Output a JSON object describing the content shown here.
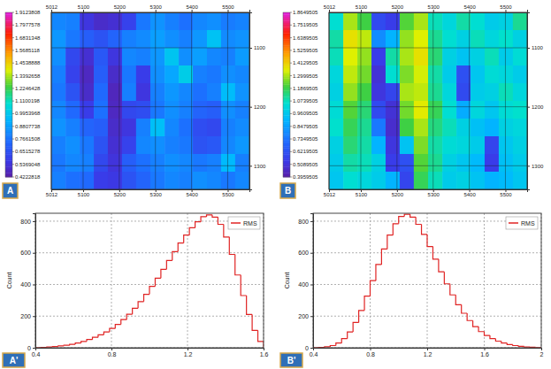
{
  "chart_data": [
    {
      "type": "heatmap",
      "panel_label": "A",
      "x": [
        5032,
        5071,
        5110,
        5149,
        5188,
        5227,
        5266,
        5306,
        5345,
        5384,
        5423,
        5462,
        5501,
        5540
      ],
      "y": [
        1055,
        1085,
        1115,
        1145,
        1175,
        1205,
        1235,
        1265,
        1295,
        1325
      ],
      "z": [
        [
          0.82,
          0.8,
          0.55,
          0.5,
          0.52,
          0.6,
          0.78,
          0.85,
          0.8,
          0.76,
          0.82,
          0.84,
          0.79,
          0.81
        ],
        [
          0.86,
          0.78,
          0.7,
          0.66,
          0.72,
          0.8,
          0.83,
          0.88,
          0.84,
          0.8,
          0.86,
          0.98,
          0.83,
          0.85
        ],
        [
          0.84,
          0.62,
          0.52,
          0.68,
          0.55,
          0.82,
          0.8,
          0.86,
          0.99,
          0.84,
          0.88,
          0.82,
          0.8,
          0.87
        ],
        [
          0.8,
          0.6,
          0.48,
          0.7,
          0.5,
          0.78,
          0.58,
          0.84,
          0.9,
          1.02,
          0.8,
          0.78,
          0.84,
          0.82
        ],
        [
          0.78,
          0.66,
          0.5,
          0.74,
          0.47,
          0.8,
          0.55,
          0.8,
          0.86,
          0.82,
          0.76,
          0.8,
          0.96,
          0.85
        ],
        [
          0.82,
          0.74,
          0.58,
          0.76,
          0.48,
          0.62,
          0.64,
          0.78,
          0.84,
          0.8,
          0.72,
          0.7,
          0.84,
          0.8
        ],
        [
          0.85,
          0.8,
          0.72,
          0.7,
          0.5,
          0.55,
          0.8,
          0.97,
          0.82,
          0.76,
          0.64,
          0.62,
          0.8,
          0.83
        ],
        [
          0.8,
          0.84,
          0.78,
          0.66,
          0.52,
          0.6,
          0.82,
          0.84,
          0.8,
          0.78,
          0.66,
          0.68,
          0.82,
          0.86
        ],
        [
          0.78,
          0.82,
          0.8,
          0.62,
          0.54,
          0.7,
          0.76,
          0.8,
          0.84,
          0.82,
          0.78,
          0.8,
          0.95,
          0.8
        ],
        [
          0.8,
          0.76,
          0.74,
          0.58,
          0.56,
          0.66,
          0.72,
          0.78,
          0.82,
          0.8,
          0.84,
          0.82,
          0.78,
          0.82
        ]
      ],
      "xlim": [
        5012,
        5560
      ],
      "xticks": [
        5012,
        5100,
        5200,
        5300,
        5400,
        5500
      ],
      "ylim": [
        1040,
        1340
      ],
      "yticks": [
        1100,
        1200,
        1300
      ],
      "colorbar_range": [
        0.4222818,
        1.9123808
      ],
      "colorbar_ticks": [
        1.9123808,
        1.7977578,
        1.6831348,
        1.5685118,
        1.4538888,
        1.3392658,
        1.2246428,
        1.1100198,
        0.9953968,
        0.8807738,
        0.7661508,
        0.6515278,
        0.5369048,
        0.4222818
      ],
      "grid": true
    },
    {
      "type": "heatmap",
      "panel_label": "B",
      "x": [
        5032,
        5071,
        5110,
        5149,
        5188,
        5227,
        5266,
        5306,
        5345,
        5384,
        5423,
        5462,
        5501,
        5540
      ],
      "y": [
        1055,
        1085,
        1115,
        1145,
        1175,
        1205,
        1235,
        1265,
        1295,
        1325
      ],
      "z": [
        [
          1.05,
          1.3,
          1.2,
          0.6,
          0.55,
          1.22,
          1.3,
          1.08,
          1.02,
          1.1,
          1.05,
          0.98,
          1.0,
          1.12
        ],
        [
          1.1,
          1.38,
          1.32,
          0.8,
          0.9,
          1.28,
          1.35,
          1.12,
          1.05,
          1.0,
          1.08,
          1.02,
          1.06,
          1.0
        ],
        [
          1.08,
          1.35,
          1.28,
          0.55,
          1.1,
          1.3,
          1.38,
          1.15,
          1.0,
          0.95,
          1.0,
          1.08,
          0.98,
          1.04
        ],
        [
          1.02,
          1.32,
          1.25,
          0.5,
          1.05,
          1.26,
          1.34,
          1.1,
          0.98,
          0.62,
          0.96,
          1.04,
          1.02,
          0.98
        ],
        [
          1.0,
          1.28,
          1.2,
          0.52,
          0.58,
          1.3,
          1.32,
          1.12,
          1.02,
          0.6,
          0.98,
          1.0,
          1.08,
          1.02
        ],
        [
          1.04,
          1.22,
          1.15,
          0.6,
          0.5,
          1.25,
          1.36,
          1.18,
          1.05,
          0.88,
          1.02,
          0.96,
          1.04,
          1.06
        ],
        [
          1.06,
          1.18,
          1.12,
          0.75,
          0.48,
          1.2,
          1.3,
          1.14,
          1.08,
          1.0,
          0.94,
          0.9,
          1.0,
          1.02
        ],
        [
          1.0,
          1.15,
          1.1,
          0.9,
          0.52,
          0.95,
          1.26,
          1.1,
          1.04,
          1.02,
          0.98,
          0.58,
          0.96,
          1.0
        ],
        [
          0.98,
          1.1,
          1.08,
          1.0,
          0.55,
          0.62,
          1.22,
          1.12,
          1.0,
          0.96,
          0.92,
          0.55,
          0.94,
          0.98
        ],
        [
          0.96,
          1.05,
          1.02,
          0.98,
          0.9,
          0.58,
          1.18,
          1.08,
          0.98,
          1.0,
          0.95,
          0.9,
          0.92,
          0.96
        ]
      ],
      "xlim": [
        5012,
        5560
      ],
      "xticks": [
        5012,
        5100,
        5200,
        5300,
        5400,
        5500
      ],
      "ylim": [
        1040,
        1340
      ],
      "yticks": [
        1100,
        1200,
        1300
      ],
      "colorbar_range": [
        0.3959505,
        1.8649505
      ],
      "colorbar_ticks": [
        1.8649505,
        1.7519505,
        1.6389505,
        1.5259505,
        1.4129505,
        1.2999505,
        1.1869505,
        1.0739505,
        0.9609505,
        0.8479505,
        0.7349505,
        0.6219505,
        0.5089505,
        0.3959505
      ],
      "grid": true
    },
    {
      "type": "histogram",
      "panel_label": "A'",
      "ylabel": "Count",
      "bins": [
        0.4,
        0.43,
        0.46,
        0.49,
        0.52,
        0.55,
        0.58,
        0.61,
        0.64,
        0.67,
        0.7,
        0.73,
        0.76,
        0.79,
        0.82,
        0.85,
        0.88,
        0.91,
        0.94,
        0.97,
        1,
        1.03,
        1.06,
        1.09,
        1.12,
        1.15,
        1.18,
        1.21,
        1.24,
        1.27,
        1.3,
        1.33,
        1.36,
        1.39,
        1.42,
        1.45,
        1.48,
        1.51,
        1.54,
        1.57,
        1.6
      ],
      "series": [
        {
          "name": "RMS",
          "color": "#e02424",
          "values": [
            0,
            2,
            5,
            8,
            12,
            16,
            22,
            30,
            40,
            52,
            66,
            82,
            100,
            122,
            148,
            178,
            212,
            250,
            292,
            338,
            388,
            440,
            496,
            552,
            608,
            662,
            712,
            758,
            796,
            828,
            840,
            826,
            780,
            700,
            590,
            460,
            330,
            210,
            110,
            40
          ]
        }
      ],
      "xlim": [
        0.4,
        1.6
      ],
      "xticks": [
        0.4,
        0.8,
        1.2,
        1.6
      ],
      "ylim": [
        0,
        850
      ],
      "yticks": [
        0,
        200,
        400,
        600,
        800
      ],
      "legend": "upper right",
      "grid": true
    },
    {
      "type": "histogram",
      "panel_label": "B'",
      "ylabel": "Count",
      "bins": [
        0.4,
        0.44,
        0.48,
        0.52,
        0.56,
        0.6,
        0.64,
        0.68,
        0.72,
        0.76,
        0.8,
        0.84,
        0.88,
        0.92,
        0.96,
        1,
        1.04,
        1.08,
        1.12,
        1.16,
        1.2,
        1.24,
        1.28,
        1.32,
        1.36,
        1.4,
        1.44,
        1.48,
        1.52,
        1.56,
        1.6,
        1.64,
        1.68,
        1.72,
        1.76,
        1.8,
        1.84,
        1.88,
        1.92,
        1.96,
        2
      ],
      "series": [
        {
          "name": "RMS",
          "color": "#e02424",
          "values": [
            0,
            2,
            6,
            14,
            30,
            58,
            100,
            160,
            236,
            326,
            424,
            526,
            624,
            712,
            784,
            830,
            844,
            826,
            780,
            716,
            640,
            560,
            480,
            404,
            334,
            272,
            218,
            172,
            134,
            102,
            78,
            58,
            42,
            30,
            20,
            14,
            9,
            5,
            3,
            1
          ]
        }
      ],
      "xlim": [
        0.4,
        2
      ],
      "xticks": [
        0.4,
        0.8,
        1.2,
        1.6,
        2
      ],
      "ylim": [
        0,
        850
      ],
      "yticks": [
        0,
        200,
        400,
        600,
        800
      ],
      "legend": "upper right",
      "grid": true
    }
  ]
}
